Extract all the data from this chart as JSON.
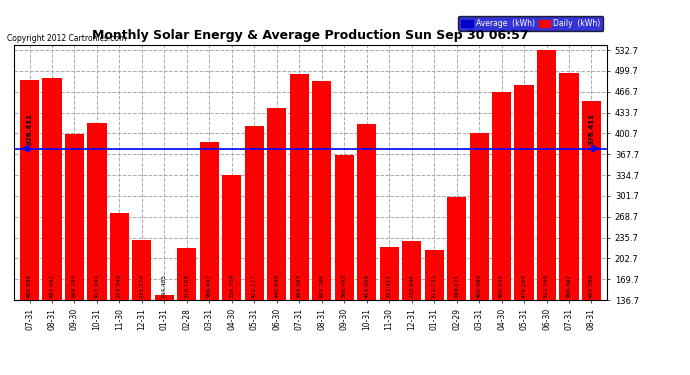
{
  "title": "Monthly Solar Energy & Average Production Sun Sep 30 06:57",
  "copyright": "Copyright 2012 Cartronics.com",
  "categories": [
    "07-31",
    "08-31",
    "09-30",
    "10-31",
    "11-30",
    "12-31",
    "01-31",
    "02-28",
    "03-31",
    "04-30",
    "05-31",
    "06-30",
    "07-31",
    "08-31",
    "09-30",
    "10-31",
    "11-30",
    "12-31",
    "01-31",
    "02-29",
    "03-31",
    "04-30",
    "05-31",
    "06-30",
    "07-31",
    "08-31"
  ],
  "values": [
    485.886,
    487.691,
    399.795,
    417.244,
    274.749,
    231.574,
    144.485,
    219.108,
    386.447,
    334.709,
    412.177,
    440.948,
    494.193,
    483.766,
    366.493,
    414.906,
    221.411,
    230.896,
    215.731,
    299.271,
    400.999,
    466.044,
    476.568,
    532.748,
    496.462,
    452.388
  ],
  "average": 376.411,
  "bar_color": "#ff0000",
  "avg_line_color": "#0000ff",
  "background_color": "#ffffff",
  "ymin": 136.7,
  "ymax": 532.7,
  "yticks": [
    136.7,
    169.7,
    202.7,
    235.7,
    268.7,
    301.7,
    334.7,
    367.7,
    400.7,
    433.7,
    466.7,
    499.7,
    532.7
  ],
  "avg_label": "376.411",
  "legend_avg_label": "Average  (kWh)",
  "legend_daily_label": "Daily  (kWh)"
}
